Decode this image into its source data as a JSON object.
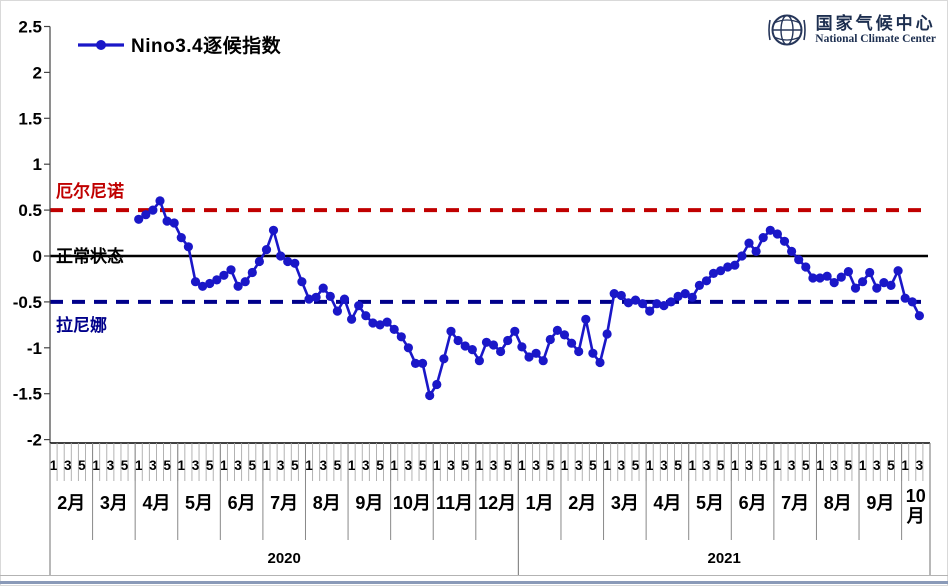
{
  "legend": {
    "label": "Nino3.4逐候指数"
  },
  "logo": {
    "title_cn": "国家气候中心",
    "title_en": "National Climate Center"
  },
  "colors": {
    "series": "#1a17c8",
    "el_nino_line": "#c00000",
    "normal_line": "#000000",
    "la_nina_line": "#00008b",
    "axis": "#444444",
    "minor_tick": "#aaaaaa",
    "divider": "#888888",
    "bottom_bar": "#8a9ab8"
  },
  "chart_data": {
    "type": "line",
    "title": "Nino3.4逐候指数",
    "xlabel": "",
    "ylabel": "",
    "ylim": [
      -2,
      2.5
    ],
    "grid": false,
    "legend_position": "top-left",
    "marker": "circle",
    "ytick_labels": [
      "2.5",
      "2",
      "1.5",
      "1",
      "0.5",
      "0",
      "-0.5",
      "-1",
      "-1.5",
      "-2"
    ],
    "ytick_values": [
      2.5,
      2,
      1.5,
      1,
      0.5,
      0,
      -0.5,
      -1,
      -1.5,
      -2
    ],
    "reference_lines": [
      {
        "value": 0.5,
        "label": "厄尔尼诺",
        "color": "#c00000",
        "style": "dashed",
        "label_position": "above"
      },
      {
        "value": 0.0,
        "label": "正常状态",
        "color": "#000000",
        "style": "solid",
        "label_position": "on"
      },
      {
        "value": -0.5,
        "label": "拉尼娜",
        "color": "#00008b",
        "style": "dashed",
        "label_position": "below"
      }
    ],
    "x_axis": {
      "pentad_tick_labels": [
        "1",
        "3",
        "5"
      ],
      "pentads_per_month": 6,
      "last_month_pentads": 4,
      "years": [
        {
          "label": "2020",
          "months": [
            "2月",
            "3月",
            "4月",
            "5月",
            "6月",
            "7月",
            "8月",
            "9月",
            "10月",
            "11月",
            "12月"
          ]
        },
        {
          "label": "2021",
          "months": [
            "1月",
            "2月",
            "3月",
            "4月",
            "5月",
            "6月",
            "7月",
            "8月",
            "9月",
            "10月"
          ]
        }
      ]
    },
    "series": [
      {
        "name": "Nino3.4逐候指数",
        "color": "#1a17c8",
        "start_label": "2020年4月第1候",
        "start_pentad_offset": 12,
        "values": [
          0.4,
          0.45,
          0.5,
          0.6,
          0.38,
          0.36,
          0.2,
          0.1,
          -0.28,
          -0.33,
          -0.3,
          -0.26,
          -0.21,
          -0.15,
          -0.33,
          -0.28,
          -0.18,
          -0.06,
          0.07,
          0.28,
          0.0,
          -0.06,
          -0.08,
          -0.28,
          -0.47,
          -0.45,
          -0.35,
          -0.44,
          -0.6,
          -0.47,
          -0.69,
          -0.54,
          -0.65,
          -0.73,
          -0.75,
          -0.72,
          -0.8,
          -0.88,
          -1.0,
          -1.17,
          -1.17,
          -1.52,
          -1.4,
          -1.12,
          -0.82,
          -0.92,
          -0.98,
          -1.02,
          -1.14,
          -0.94,
          -0.97,
          -1.04,
          -0.92,
          -0.82,
          -0.99,
          -1.1,
          -1.06,
          -1.14,
          -0.91,
          -0.81,
          -0.86,
          -0.95,
          -1.04,
          -0.69,
          -1.06,
          -1.16,
          -0.85,
          -0.41,
          -0.43,
          -0.51,
          -0.48,
          -0.52,
          -0.6,
          -0.52,
          -0.54,
          -0.5,
          -0.44,
          -0.41,
          -0.45,
          -0.32,
          -0.27,
          -0.19,
          -0.16,
          -0.12,
          -0.1,
          0.0,
          0.14,
          0.05,
          0.2,
          0.28,
          0.24,
          0.16,
          0.05,
          -0.04,
          -0.12,
          -0.24,
          -0.24,
          -0.22,
          -0.29,
          -0.23,
          -0.17,
          -0.35,
          -0.28,
          -0.18,
          -0.35,
          -0.29,
          -0.32,
          -0.16,
          -0.46,
          -0.5,
          -0.65
        ]
      }
    ]
  }
}
